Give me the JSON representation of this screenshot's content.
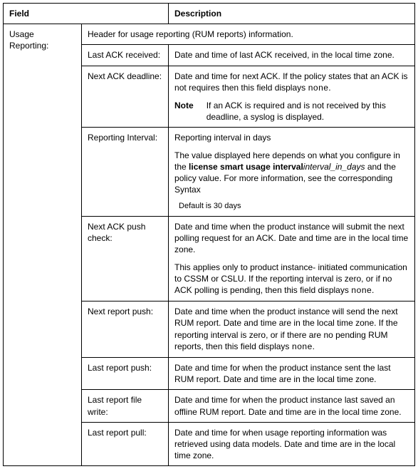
{
  "header": {
    "field_label": "Field",
    "description_label": "Description"
  },
  "group": {
    "title": "Usage Reporting:",
    "intro": "Header for usage reporting (RUM reports) information."
  },
  "rows": {
    "last_ack_received": {
      "label": "Last ACK received:",
      "desc": "Date and time of last ACK received, in the local time zone."
    },
    "next_ack_deadline": {
      "label": "Next ACK deadline:",
      "desc_pre": "Date and time for next ACK. If the policy states that an ACK is not requires then this field displays ",
      "desc_mono": "none",
      "desc_post": ".",
      "note_label": "Note",
      "note_body": "If an ACK is required and is not received by this deadline, a syslog is displayed."
    },
    "reporting_interval": {
      "label": "Reporting Interval:",
      "line1": "Reporting interval in days",
      "line2_pre": "The value displayed here depends on what you configure in the ",
      "line2_bold": "license smart usage interval",
      "line2_italic": "interval_in_days",
      "line2_post": " and the policy value. For more information, see the corresponding Syntax",
      "default_line": "Default is 30 days"
    },
    "next_ack_push_check": {
      "label": "Next ACK push check:",
      "p1": "Date and time when the product instance will submit the next polling request for an ACK. Date and time are in the local time zone.",
      "p2_pre": "This applies only to product instance- initiated communication to CSSM or CSLU. If the reporting interval is zero, or if no ACK polling is pending, then this field displays ",
      "p2_mono": "none",
      "p2_post": "."
    },
    "next_report_push": {
      "label": "Next report push:",
      "desc_pre": "Date and time when the product instance will send the next RUM report. Date and time are in the local time zone. If the reporting interval is zero, or if there are no pending RUM reports, then this field displays ",
      "desc_mono": "none",
      "desc_post": "."
    },
    "last_report_push": {
      "label": "Last report push:",
      "desc": "Date and time for when the product instance sent the last RUM report. Date and time are in the local time zone."
    },
    "last_report_file_write": {
      "label": "Last report file write:",
      "desc": "Date and time for when the product instance last saved an offline RUM report. Date and time are in the local time zone."
    },
    "last_report_pull": {
      "label": "Last report pull:",
      "desc": "Date and time for when usage reporting information was retrieved using data models. Date and time are in the local time zone."
    }
  }
}
